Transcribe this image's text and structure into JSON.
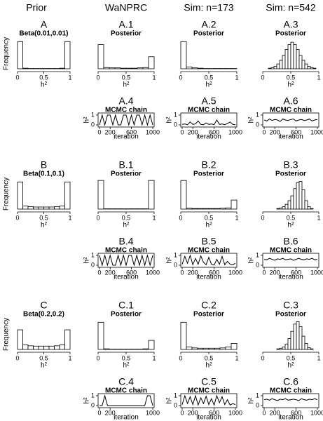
{
  "header": {
    "columns": [
      "Prior",
      "WaNPRC",
      "Sim: n=173",
      "Sim: n=542"
    ]
  },
  "chart_data": [
    {
      "type": "histogram",
      "title": "A",
      "subtitle": "Beta(0.01,0.01)",
      "xlabel": "h²",
      "ylabel": "Frequency",
      "bins": [
        0,
        0.1,
        0.2,
        0.3,
        0.4,
        0.5,
        0.6,
        0.7,
        0.8,
        0.9,
        1
      ],
      "counts": [
        90,
        2,
        1,
        1,
        1,
        1,
        1,
        1,
        2,
        90
      ],
      "xlim": [
        0,
        1
      ],
      "ylim": [
        0,
        100
      ],
      "xticks": [
        0,
        0.5,
        1
      ]
    },
    {
      "type": "histogram",
      "title": "A.1",
      "subtitle": "Posterior",
      "xlabel": "h²",
      "bins": [
        0,
        0.1,
        0.2,
        0.3,
        0.4,
        0.5,
        0.6,
        0.7,
        0.8,
        0.9,
        1
      ],
      "counts": [
        80,
        4,
        3,
        3,
        2,
        2,
        2,
        3,
        4,
        40
      ],
      "xlim": [
        0,
        1
      ],
      "ylim": [
        0,
        100
      ],
      "xticks": [
        0,
        0.5,
        1
      ]
    },
    {
      "type": "histogram",
      "title": "A.2",
      "subtitle": "Posterior",
      "xlabel": "h²",
      "bins": [
        0,
        0.1,
        0.2,
        0.3,
        0.4,
        0.5,
        0.6,
        0.7,
        0.8,
        0.9,
        1
      ],
      "counts": [
        90,
        6,
        3,
        2,
        1,
        1,
        1,
        1,
        1,
        1
      ],
      "xlim": [
        0,
        1
      ],
      "ylim": [
        0,
        100
      ],
      "xticks": [
        0,
        0.5,
        1
      ]
    },
    {
      "type": "histogram",
      "title": "A.3",
      "subtitle": "Posterior",
      "xlabel": "h²",
      "bins": [
        0,
        0.05,
        0.1,
        0.15,
        0.2,
        0.25,
        0.3,
        0.35,
        0.4,
        0.45,
        0.5,
        0.55,
        0.6,
        0.65,
        0.7,
        0.75,
        0.8,
        0.85,
        0.9,
        0.95,
        1
      ],
      "counts": [
        0,
        0,
        1,
        2,
        4,
        8,
        14,
        22,
        32,
        40,
        44,
        40,
        32,
        22,
        14,
        8,
        4,
        2,
        1,
        0
      ],
      "xlim": [
        0,
        1
      ],
      "ylim": [
        0,
        50
      ],
      "xticks": [
        0,
        0.5,
        1
      ]
    },
    {
      "type": "line",
      "title": "A.4",
      "subtitle": "MCMC chain",
      "xlabel": "iteration",
      "ylabel": "h²",
      "x": [
        0,
        50,
        100,
        150,
        200,
        250,
        300,
        350,
        400,
        450,
        500,
        550,
        600,
        650,
        700,
        750,
        800,
        850,
        900,
        950,
        1000
      ],
      "values": [
        0,
        1,
        0,
        1,
        1,
        0,
        1,
        0,
        0,
        1,
        1,
        0,
        1,
        0,
        1,
        1,
        0,
        1,
        0,
        1,
        0
      ],
      "xlim": [
        0,
        1000
      ],
      "ylim": [
        0,
        1
      ],
      "xticks": [
        0,
        200,
        600,
        1000
      ],
      "yticks": [
        0,
        1
      ]
    },
    {
      "type": "line",
      "title": "A.5",
      "subtitle": "MCMC chain",
      "xlabel": "iteration",
      "ylabel": "h²",
      "x": [
        0,
        50,
        100,
        150,
        200,
        250,
        300,
        350,
        400,
        450,
        500,
        550,
        600,
        650,
        700,
        750,
        800,
        850,
        900,
        950,
        1000
      ],
      "values": [
        0.05,
        0.1,
        0.02,
        0.3,
        0.05,
        0.1,
        0.4,
        0.05,
        0.02,
        0.2,
        0.05,
        0.1,
        0.03,
        0.5,
        0.05,
        0.1,
        0.02,
        0.15,
        0.3,
        0.05,
        0.02
      ],
      "xlim": [
        0,
        1000
      ],
      "ylim": [
        0,
        1
      ],
      "xticks": [
        0,
        200,
        600,
        1000
      ],
      "yticks": [
        0,
        1
      ]
    },
    {
      "type": "line",
      "title": "A.6",
      "subtitle": "MCMC chain",
      "xlabel": "iteration",
      "ylabel": "h²",
      "x": [
        0,
        50,
        100,
        150,
        200,
        250,
        300,
        350,
        400,
        450,
        500,
        550,
        600,
        650,
        700,
        750,
        800,
        850,
        900,
        950,
        1000
      ],
      "values": [
        0.5,
        0.4,
        0.6,
        0.45,
        0.55,
        0.5,
        0.35,
        0.6,
        0.5,
        0.45,
        0.55,
        0.6,
        0.4,
        0.5,
        0.55,
        0.45,
        0.5,
        0.6,
        0.4,
        0.5,
        0.55
      ],
      "xlim": [
        0,
        1000
      ],
      "ylim": [
        0,
        1
      ],
      "xticks": [
        0,
        200,
        600,
        1000
      ],
      "yticks": [
        0,
        1
      ]
    },
    {
      "type": "histogram",
      "title": "B",
      "subtitle": "Beta(0.1,0.1)",
      "xlabel": "h²",
      "ylabel": "Frequency",
      "bins": [
        0,
        0.1,
        0.2,
        0.3,
        0.4,
        0.5,
        0.6,
        0.7,
        0.8,
        0.9,
        1
      ],
      "counts": [
        90,
        10,
        8,
        7,
        7,
        7,
        7,
        8,
        10,
        90
      ],
      "xlim": [
        0,
        1
      ],
      "ylim": [
        0,
        100
      ],
      "xticks": [
        0,
        0.5,
        1
      ]
    },
    {
      "type": "histogram",
      "title": "B.1",
      "subtitle": "Posterior",
      "xlabel": "h²",
      "bins": [
        0,
        0.1,
        0.2,
        0.3,
        0.4,
        0.5,
        0.6,
        0.7,
        0.8,
        0.9,
        1
      ],
      "counts": [
        95,
        1,
        1,
        1,
        1,
        1,
        1,
        1,
        1,
        95
      ],
      "xlim": [
        0,
        1
      ],
      "ylim": [
        0,
        100
      ],
      "xticks": [
        0,
        0.5,
        1
      ]
    },
    {
      "type": "histogram",
      "title": "B.2",
      "subtitle": "Posterior",
      "xlabel": "h²",
      "bins": [
        0,
        0.1,
        0.2,
        0.3,
        0.4,
        0.5,
        0.6,
        0.7,
        0.8,
        0.9,
        1
      ],
      "counts": [
        95,
        3,
        2,
        2,
        2,
        2,
        2,
        3,
        4,
        30
      ],
      "xlim": [
        0,
        1
      ],
      "ylim": [
        0,
        100
      ],
      "xticks": [
        0,
        0.5,
        1
      ]
    },
    {
      "type": "histogram",
      "title": "B.3",
      "subtitle": "Posterior",
      "xlabel": "h²",
      "bins": [
        0,
        0.05,
        0.1,
        0.15,
        0.2,
        0.25,
        0.3,
        0.35,
        0.4,
        0.45,
        0.5,
        0.55,
        0.6,
        0.65,
        0.7,
        0.75,
        0.8,
        0.85,
        0.9,
        0.95,
        1
      ],
      "counts": [
        0,
        0,
        0,
        0,
        0,
        1,
        2,
        4,
        8,
        14,
        22,
        34,
        44,
        46,
        32,
        14,
        4,
        1,
        0,
        0
      ],
      "xlim": [
        0,
        1
      ],
      "ylim": [
        0,
        50
      ],
      "xticks": [
        0,
        0.5,
        1
      ]
    },
    {
      "type": "line",
      "title": "B.4",
      "subtitle": "MCMC chain",
      "xlabel": "iteration",
      "ylabel": "h²",
      "x": [
        0,
        50,
        100,
        150,
        200,
        250,
        300,
        350,
        400,
        450,
        500,
        550,
        600,
        650,
        700,
        750,
        800,
        850,
        900,
        950,
        1000
      ],
      "values": [
        1,
        0,
        1,
        0,
        1,
        0,
        0,
        1,
        0,
        1,
        0,
        1,
        1,
        0,
        1,
        0,
        1,
        0,
        1,
        0,
        1
      ],
      "xlim": [
        0,
        1000
      ],
      "ylim": [
        0,
        1
      ],
      "xticks": [
        0,
        200,
        600,
        1000
      ],
      "yticks": [
        0,
        1
      ]
    },
    {
      "type": "line",
      "title": "B.5",
      "subtitle": "MCMC chain",
      "xlabel": "iteration",
      "ylabel": "h²",
      "x": [
        0,
        50,
        100,
        150,
        200,
        250,
        300,
        350,
        400,
        450,
        500,
        550,
        600,
        650,
        700,
        750,
        800,
        850,
        900,
        950,
        1000
      ],
      "values": [
        0.1,
        0.9,
        0.2,
        1,
        0.05,
        0.7,
        0.1,
        0.95,
        0.3,
        0.05,
        0.8,
        0.1,
        0.02,
        0.6,
        0.1,
        0.9,
        0.05,
        0.4,
        0.1,
        0.05,
        0.2
      ],
      "xlim": [
        0,
        1000
      ],
      "ylim": [
        0,
        1
      ],
      "xticks": [
        0,
        200,
        600,
        1000
      ],
      "yticks": [
        0,
        1
      ]
    },
    {
      "type": "line",
      "title": "B.6",
      "subtitle": "MCMC chain",
      "xlabel": "iteration",
      "ylabel": "h²",
      "x": [
        0,
        50,
        100,
        150,
        200,
        250,
        300,
        350,
        400,
        450,
        500,
        550,
        600,
        650,
        700,
        750,
        800,
        850,
        900,
        950,
        1000
      ],
      "values": [
        0.6,
        0.55,
        0.7,
        0.6,
        0.5,
        0.65,
        0.6,
        0.7,
        0.55,
        0.6,
        0.65,
        0.5,
        0.6,
        0.7,
        0.6,
        0.55,
        0.65,
        0.6,
        0.7,
        0.55,
        0.6
      ],
      "xlim": [
        0,
        1000
      ],
      "ylim": [
        0,
        1
      ],
      "xticks": [
        0,
        200,
        600,
        1000
      ],
      "yticks": [
        0,
        1
      ]
    },
    {
      "type": "histogram",
      "title": "C",
      "subtitle": "Beta(0.2,0.2)",
      "xlabel": "h²",
      "ylabel": "Frequency",
      "bins": [
        0,
        0.1,
        0.2,
        0.3,
        0.4,
        0.5,
        0.6,
        0.7,
        0.8,
        0.9,
        1
      ],
      "counts": [
        65,
        15,
        12,
        11,
        11,
        11,
        11,
        12,
        15,
        65
      ],
      "xlim": [
        0,
        1
      ],
      "ylim": [
        0,
        100
      ],
      "xticks": [
        0,
        0.5,
        1
      ]
    },
    {
      "type": "histogram",
      "title": "C.1",
      "subtitle": "Posterior",
      "xlabel": "h²",
      "bins": [
        0,
        0.1,
        0.2,
        0.3,
        0.4,
        0.5,
        0.6,
        0.7,
        0.8,
        0.9,
        1
      ],
      "counts": [
        90,
        2,
        1,
        1,
        1,
        1,
        1,
        1,
        2,
        30
      ],
      "xlim": [
        0,
        1
      ],
      "ylim": [
        0,
        100
      ],
      "xticks": [
        0,
        0.5,
        1
      ]
    },
    {
      "type": "histogram",
      "title": "C.2",
      "subtitle": "Posterior",
      "xlabel": "h²",
      "bins": [
        0,
        0.1,
        0.2,
        0.3,
        0.4,
        0.5,
        0.6,
        0.7,
        0.8,
        0.9,
        1
      ],
      "counts": [
        90,
        8,
        5,
        4,
        4,
        4,
        4,
        5,
        8,
        20
      ],
      "xlim": [
        0,
        1
      ],
      "ylim": [
        0,
        100
      ],
      "xticks": [
        0,
        0.5,
        1
      ]
    },
    {
      "type": "histogram",
      "title": "C.3",
      "subtitle": "Posterior",
      "xlabel": "h²",
      "bins": [
        0,
        0.05,
        0.1,
        0.15,
        0.2,
        0.25,
        0.3,
        0.35,
        0.4,
        0.45,
        0.5,
        0.55,
        0.6,
        0.65,
        0.7,
        0.75,
        0.8,
        0.85,
        0.9,
        0.95,
        1
      ],
      "counts": [
        0,
        0,
        0,
        0,
        0,
        1,
        2,
        4,
        9,
        18,
        30,
        42,
        46,
        38,
        22,
        10,
        3,
        1,
        0,
        0
      ],
      "xlim": [
        0,
        1
      ],
      "ylim": [
        0,
        50
      ],
      "xticks": [
        0,
        0.5,
        1
      ]
    },
    {
      "type": "line",
      "title": "C.4",
      "subtitle": "MCMC chain",
      "xlabel": "iteration",
      "ylabel": "h²",
      "x": [
        0,
        50,
        100,
        150,
        200,
        250,
        300,
        350,
        400,
        450,
        500,
        550,
        600,
        650,
        700,
        750,
        800,
        850,
        900,
        950,
        1000
      ],
      "values": [
        0,
        0,
        1,
        0,
        0,
        0,
        0,
        0,
        0,
        0,
        0,
        0,
        0,
        0,
        0,
        0,
        0,
        0,
        1,
        1,
        0
      ],
      "xlim": [
        0,
        1000
      ],
      "ylim": [
        0,
        1
      ],
      "xticks": [
        0,
        200,
        1000
      ],
      "yticks": [
        0,
        1
      ]
    },
    {
      "type": "line",
      "title": "C.5",
      "subtitle": "MCMC chain",
      "xlabel": "iteration",
      "ylabel": "h²",
      "x": [
        0,
        50,
        100,
        150,
        200,
        250,
        300,
        350,
        400,
        450,
        500,
        550,
        600,
        650,
        700,
        750,
        800,
        850,
        900,
        950,
        1000
      ],
      "values": [
        0.1,
        1,
        0.2,
        0.9,
        0.1,
        1,
        0.05,
        0.8,
        0.2,
        0.95,
        0.1,
        0.7,
        0.05,
        1,
        0.3,
        0.9,
        0.1,
        0.6,
        0.05,
        0.2,
        0.1
      ],
      "xlim": [
        0,
        1000
      ],
      "ylim": [
        0,
        1
      ],
      "xticks": [
        0,
        200,
        600,
        1000
      ],
      "yticks": [
        0,
        1
      ]
    },
    {
      "type": "line",
      "title": "C.6",
      "subtitle": "MCMC chain",
      "xlabel": "iteration",
      "ylabel": "h²",
      "x": [
        0,
        50,
        100,
        150,
        200,
        250,
        300,
        350,
        400,
        450,
        500,
        550,
        600,
        650,
        700,
        750,
        800,
        850,
        900,
        950,
        1000
      ],
      "values": [
        0.6,
        0.65,
        0.55,
        0.7,
        0.6,
        0.5,
        0.65,
        0.6,
        0.7,
        0.55,
        0.6,
        0.65,
        0.6,
        0.5,
        0.7,
        0.6,
        0.55,
        0.65,
        0.6,
        0.7,
        0.6
      ],
      "xlim": [
        0,
        1000
      ],
      "ylim": [
        0,
        1
      ],
      "xticks": [
        0,
        200,
        600,
        1000
      ],
      "yticks": [
        0,
        1
      ]
    }
  ]
}
